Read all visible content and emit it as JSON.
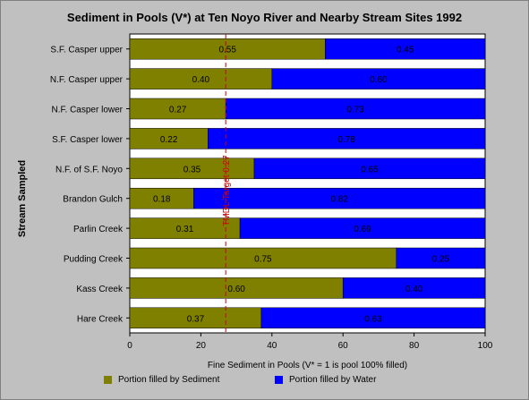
{
  "chart_data": {
    "type": "bar",
    "orientation": "horizontal",
    "stacked": true,
    "title": "Sediment in Pools (V*) at Ten Noyo River and Nearby Stream Sites 1992",
    "ylabel": "Stream Sampled",
    "xlabel": "Fine Sediment in Pools (V* = 1 is pool 100% filled)",
    "xlim": [
      0,
      100
    ],
    "xticks": [
      "0",
      "20",
      "40",
      "60",
      "80",
      "100"
    ],
    "categories": [
      "S.F. Casper upper",
      "N.F. Casper upper",
      "N.F. Casper lower",
      "S.F. Casper lower",
      "N.F. of S.F. Noyo",
      "Brandon Gulch",
      "Parlin Creek",
      "Pudding Creek",
      "Kass Creek",
      "Hare Creek"
    ],
    "series": [
      {
        "name": "Portion filled by Sediment",
        "color": "#808000",
        "values": [
          55,
          40,
          27,
          22,
          35,
          18,
          31,
          75,
          60,
          37
        ],
        "labels": [
          "0.55",
          "0.40",
          "0.27",
          "0.22",
          "0.35",
          "0.18",
          "0.31",
          "0.75",
          "0.60",
          "0.37"
        ]
      },
      {
        "name": "Portion filled by Water",
        "color": "#0000ff",
        "values": [
          45,
          60,
          73,
          78,
          65,
          82,
          69,
          25,
          40,
          63
        ],
        "labels": [
          "0.45",
          "0.60",
          "0.73",
          "0.78",
          "0.65",
          "0.82",
          "0.69",
          "0.25",
          "0.40",
          "0.63"
        ]
      }
    ],
    "reference_line": {
      "value": 27,
      "label": "TMDL Target 0.27",
      "color": "#cc0000",
      "style": "dashed"
    },
    "grid": false,
    "legend_position": "bottom"
  }
}
